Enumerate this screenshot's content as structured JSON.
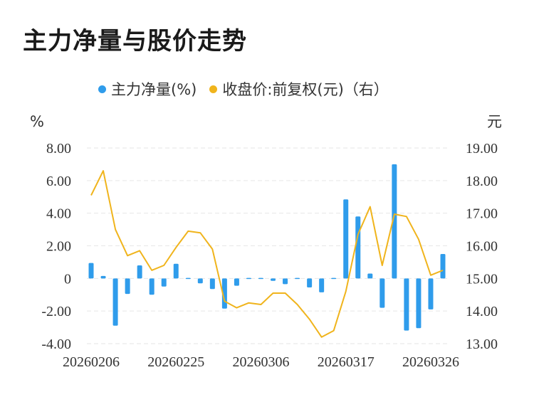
{
  "title": "主力净量与股价走势",
  "colors": {
    "bar": "#2f9ceb",
    "line": "#f0b41c",
    "grid": "#e6e6e6"
  },
  "chart_data": {
    "type": "bar",
    "legend": [
      {
        "name": "主力净量(%)",
        "color": "#2f9ceb"
      },
      {
        "name": "收盘价:前复权(元)（右）",
        "color": "#f0b41c"
      }
    ],
    "left_axis": {
      "unit": "%",
      "ticks": [
        "8.00",
        "6.00",
        "4.00",
        "2.00",
        "0",
        "-2.00",
        "-4.00"
      ],
      "range": [
        -4,
        8
      ]
    },
    "right_axis": {
      "unit": "元",
      "ticks": [
        "19.00",
        "18.00",
        "17.00",
        "16.00",
        "15.00",
        "14.00",
        "13.00"
      ],
      "range": [
        13,
        19
      ]
    },
    "x_tick_labels": [
      "20260206",
      "20260225",
      "20260306",
      "20260317",
      "20260326"
    ],
    "x_tick_indices": [
      0,
      7,
      14,
      21,
      28
    ],
    "series": [
      {
        "name": "主力净量(%)",
        "type": "bar",
        "values": [
          0.95,
          0.15,
          -2.9,
          -0.95,
          0.8,
          -1.0,
          -0.5,
          0.9,
          0.05,
          -0.3,
          -0.65,
          -1.85,
          -0.45,
          -0.05,
          -0.05,
          -0.15,
          -0.35,
          -0.05,
          -0.55,
          -0.85,
          -0.05,
          4.85,
          3.8,
          0.3,
          -1.8,
          7.0,
          -3.2,
          -3.05,
          -1.9,
          1.5
        ]
      },
      {
        "name": "收盘价:前复权(元)（右）",
        "type": "line",
        "values": [
          17.55,
          18.3,
          16.5,
          15.7,
          15.85,
          15.25,
          15.4,
          15.95,
          16.45,
          16.4,
          15.9,
          14.3,
          14.1,
          14.25,
          14.2,
          14.55,
          14.55,
          14.2,
          13.75,
          13.2,
          13.4,
          14.6,
          16.35,
          17.2,
          15.4,
          16.97,
          16.9,
          16.2,
          15.1,
          15.25
        ]
      }
    ]
  }
}
